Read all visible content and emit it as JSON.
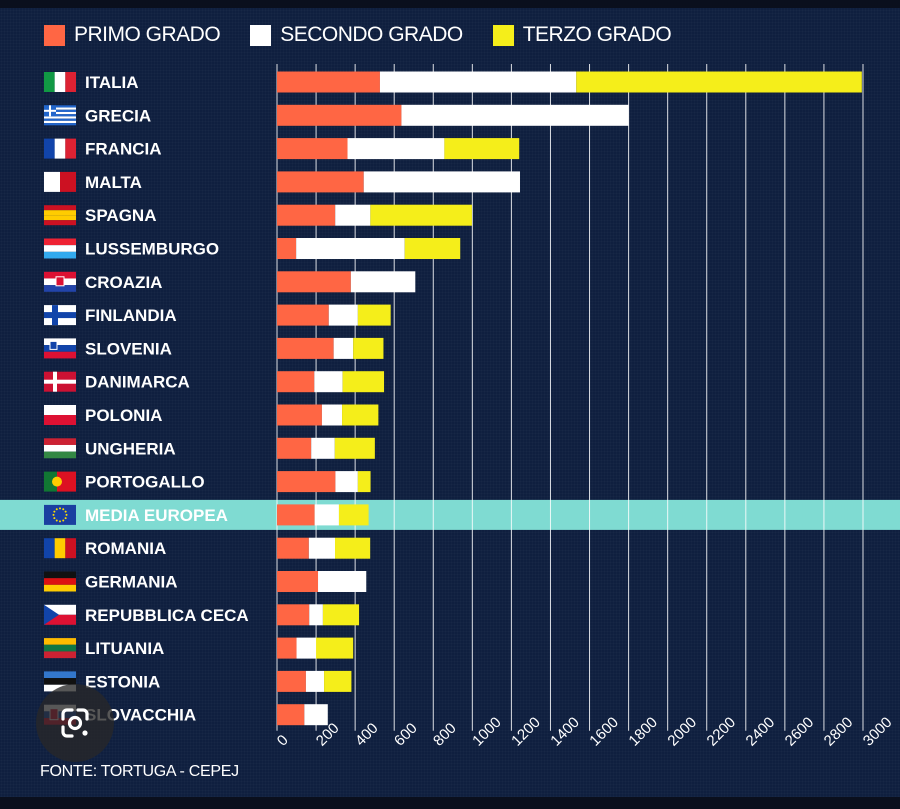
{
  "legend": [
    {
      "label": "PRIMO GRADO",
      "color": "#ff6644"
    },
    {
      "label": "SECONDO GRADO",
      "color": "#ffffff"
    },
    {
      "label": "TERZO GRADO",
      "color": "#f5ee1a"
    }
  ],
  "source": "FONTE: TORTUGA - CEPEJ",
  "lens_icon": "google-lens-icon",
  "highlight_color": "#7fdbd2",
  "chart_data": {
    "type": "bar",
    "orientation": "horizontal",
    "stacked": true,
    "categories": [
      "ITALIA",
      "GRECIA",
      "FRANCIA",
      "MALTA",
      "SPAGNA",
      "LUSSEMBURGO",
      "CROAZIA",
      "FINLANDIA",
      "SLOVENIA",
      "DANIMARCA",
      "POLONIA",
      "UNGHERIA",
      "PORTOGALLO",
      "MEDIA EUROPEA",
      "ROMANIA",
      "GERMANIA",
      "REPUBBLICA CECA",
      "LITUANIA",
      "ESTONIA",
      "SLOVACCHIA"
    ],
    "highlight": "MEDIA EUROPEA",
    "series": [
      {
        "name": "PRIMO GRADO",
        "color": "#ff6644",
        "values": [
          527,
          637,
          361,
          444,
          298,
          98,
          378,
          265,
          290,
          191,
          230,
          175,
          299,
          193,
          163,
          210,
          165,
          100,
          148,
          140
        ]
      },
      {
        "name": "SECONDO GRADO",
        "color": "#ffffff",
        "values": [
          1005,
          1163,
          496,
          800,
          180,
          556,
          330,
          149,
          100,
          145,
          103,
          121,
          115,
          124,
          134,
          247,
          70,
          100,
          93,
          120
        ]
      },
      {
        "name": "TERZO GRADO",
        "color": "#f5ee1a",
        "values": [
          1462,
          0,
          383,
          0,
          520,
          284,
          0,
          168,
          155,
          212,
          186,
          205,
          65,
          152,
          180,
          0,
          185,
          190,
          140,
          0
        ]
      }
    ],
    "xlim": [
      0,
      3000
    ],
    "xticks": [
      0,
      200,
      400,
      600,
      800,
      1000,
      1200,
      1400,
      1600,
      1800,
      2000,
      2200,
      2400,
      2600,
      2800,
      3000
    ],
    "grid": true,
    "legend_position": "top-left",
    "flags": [
      "flag-it-icon",
      "flag-gr-icon",
      "flag-fr-icon",
      "flag-mt-icon",
      "flag-es-icon",
      "flag-lu-icon",
      "flag-hr-icon",
      "flag-fi-icon",
      "flag-si-icon",
      "flag-dk-icon",
      "flag-pl-icon",
      "flag-hu-icon",
      "flag-pt-icon",
      "flag-eu-icon",
      "flag-ro-icon",
      "flag-de-icon",
      "flag-cz-icon",
      "flag-lt-icon",
      "flag-ee-icon",
      "flag-sk-icon"
    ]
  }
}
